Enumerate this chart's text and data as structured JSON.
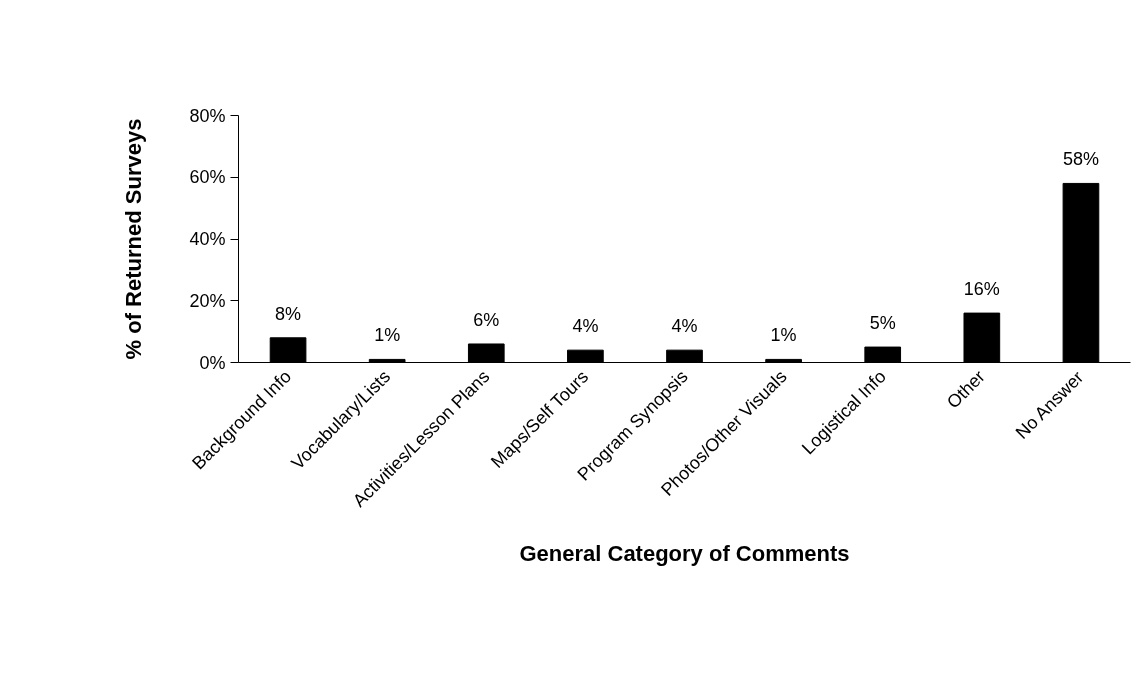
{
  "chart_data": {
    "type": "bar",
    "categories": [
      "Background Info",
      "Vocabulary/Lists",
      "Activities/Lesson Plans",
      "Maps/Self Tours",
      "Program Synopsis",
      "Photos/Other Visuals",
      "Logistical Info",
      "Other",
      "No Answer"
    ],
    "values": [
      8,
      1,
      6,
      4,
      4,
      1,
      5,
      16,
      58
    ],
    "color": "#000000",
    "xlabel": "General Category of Comments",
    "ylabel": "% of Returned Surveys",
    "ylim": [
      0,
      80
    ],
    "yticks": [
      {
        "value": 0,
        "label": "0%"
      },
      {
        "value": 20,
        "label": "20%"
      },
      {
        "value": 40,
        "label": "40%"
      },
      {
        "value": 60,
        "label": "60%"
      },
      {
        "value": 80,
        "label": "80%"
      }
    ],
    "value_labels": [
      "8%",
      "1%",
      "6%",
      "4%",
      "4%",
      "1%",
      "5%",
      "16%",
      "58%"
    ],
    "grid": false
  }
}
